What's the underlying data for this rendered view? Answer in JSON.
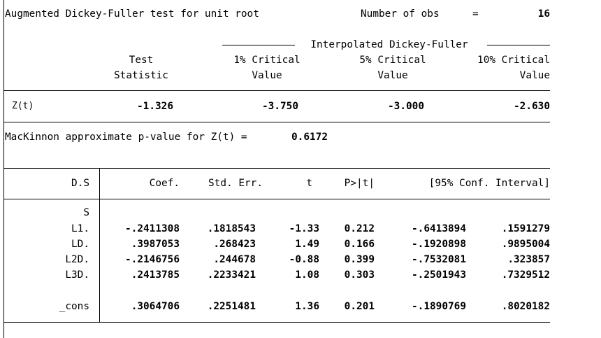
{
  "test": {
    "title": "Augmented Dickey-Fuller test for unit root",
    "nobs_label": "Number of obs",
    "nobs_eq": "=",
    "nobs_value": "16"
  },
  "crit_header": {
    "interpolated": "Interpolated Dickey-Fuller",
    "col1_line1": "Test",
    "col1_line2": "Statistic",
    "col2_line1": "1% Critical",
    "col2_line2": "Value",
    "col3_line1": "5% Critical",
    "col3_line2": "Value",
    "col4_line1": "10% Critical",
    "col4_line2": "Value"
  },
  "crit_row": {
    "label": "Z(t)",
    "stat": "-1.326",
    "cv1": "-3.750",
    "cv5": "-3.000",
    "cv10": "-2.630"
  },
  "pvalue": {
    "text": "MacKinnon approximate p-value for Z(t) =",
    "value": "0.6172"
  },
  "reg": {
    "headers": {
      "var": "D.S",
      "coef": "Coef.",
      "se": "Std. Err.",
      "t": "t",
      "p": "P>|t|",
      "ci": "[95% Conf. Interval]"
    },
    "group_label": "S",
    "rows": [
      {
        "name": "L1.",
        "coef": "-.2411308",
        "se": ".1818543",
        "t": "-1.33",
        "p": "0.212",
        "lo": "-.6413894",
        "hi": ".1591279"
      },
      {
        "name": "LD.",
        "coef": ".3987053",
        "se": ".268423",
        "t": "1.49",
        "p": "0.166",
        "lo": "-.1920898",
        "hi": ".9895004"
      },
      {
        "name": "L2D.",
        "coef": "-.2146756",
        "se": ".244678",
        "t": "-0.88",
        "p": "0.399",
        "lo": "-.7532081",
        "hi": ".323857"
      },
      {
        "name": "L3D.",
        "coef": ".2413785",
        "se": ".2233421",
        "t": "1.08",
        "p": "0.303",
        "lo": "-.2501943",
        "hi": ".7329512"
      }
    ],
    "cons": {
      "name": "_cons",
      "coef": ".3064706",
      "se": ".2251481",
      "t": "1.36",
      "p": "0.201",
      "lo": "-.1890769",
      "hi": ".8020182"
    }
  }
}
